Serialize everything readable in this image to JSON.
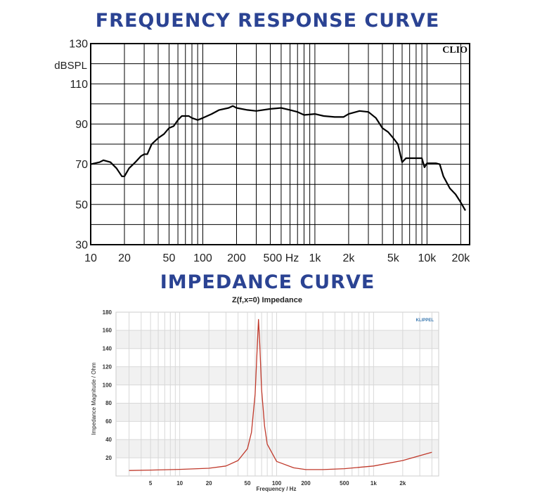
{
  "colors": {
    "title": "#2b4393",
    "fr_curve": "#000000",
    "imp_curve": "#c0392b",
    "band": "#f1f1f1"
  },
  "titles": {
    "frequency_response": "FREQUENCY RESPONSE CURVE",
    "impedance": "IMPEDANCE CURVE"
  },
  "chart_data": [
    {
      "type": "line",
      "title": "",
      "xlabel": "",
      "ylabel": "dBSPL",
      "xscale": "log",
      "xlim": [
        10,
        24000
      ],
      "ylim": [
        30,
        130
      ],
      "grid": true,
      "watermark": "CLIO",
      "yticks": [
        "130",
        "110",
        "90",
        "70",
        "50",
        "30"
      ],
      "ytick_values": [
        130,
        110,
        90,
        70,
        50,
        30
      ],
      "xticks": [
        "10",
        "20",
        "50",
        "100",
        "200",
        "500 Hz",
        "1k",
        "2k",
        "5k",
        "10k",
        "20k"
      ],
      "xtick_values": [
        10,
        20,
        50,
        100,
        200,
        500,
        1000,
        2000,
        5000,
        10000,
        20000
      ],
      "x": [
        10,
        12,
        13,
        15,
        17,
        19,
        20,
        22,
        25,
        28,
        30,
        32,
        35,
        40,
        45,
        50,
        55,
        60,
        65,
        75,
        80,
        90,
        100,
        120,
        140,
        170,
        185,
        200,
        250,
        300,
        400,
        500,
        600,
        700,
        800,
        1000,
        1200,
        1500,
        1800,
        2000,
        2500,
        3000,
        3500,
        4000,
        4500,
        5000,
        5500,
        6000,
        6500,
        8000,
        9000,
        9500,
        10000,
        12000,
        13000,
        14000,
        16000,
        18000,
        20000,
        22000
      ],
      "y": [
        70,
        71,
        72,
        71,
        68,
        64,
        64,
        68,
        71,
        74,
        75,
        75,
        80,
        83,
        85,
        88,
        89,
        92,
        94,
        94,
        93,
        92,
        93,
        95,
        97,
        98,
        99,
        98,
        97,
        96.5,
        97.5,
        98,
        97,
        96,
        94.5,
        95,
        94,
        93.5,
        93.5,
        95,
        96.5,
        96,
        93,
        88,
        86,
        83,
        80,
        71,
        73,
        73,
        73,
        68.5,
        70.5,
        70.5,
        70,
        64,
        58,
        55,
        51,
        47
      ]
    },
    {
      "type": "line",
      "title": "Z(f,x=0) Impedance",
      "xlabel": "Frequency / Hz",
      "ylabel": "Impedance Magnitude / Ohm",
      "xscale": "log",
      "xlim": [
        2.2,
        4700
      ],
      "ylim": [
        0,
        180
      ],
      "grid": true,
      "watermark": "KLIPPEL",
      "yticks": [
        "180",
        "160",
        "140",
        "120",
        "100",
        "80",
        "60",
        "40",
        "20"
      ],
      "ytick_values": [
        180,
        160,
        140,
        120,
        100,
        80,
        60,
        40,
        20
      ],
      "xticks": [
        "5",
        "10",
        "20",
        "50",
        "100",
        "200",
        "500",
        "1k",
        "2k"
      ],
      "xtick_values": [
        5,
        10,
        20,
        50,
        100,
        200,
        500,
        1000,
        2000
      ],
      "x": [
        3,
        5,
        10,
        20,
        30,
        40,
        50,
        55,
        60,
        63,
        65,
        67,
        70,
        75,
        80,
        100,
        150,
        200,
        300,
        500,
        1000,
        2000,
        4000
      ],
      "y": [
        6,
        6.5,
        7.3,
        8.5,
        11,
        17,
        30,
        48,
        90,
        140,
        172,
        145,
        95,
        55,
        35,
        16,
        9,
        7,
        7,
        8,
        11,
        17,
        26
      ]
    }
  ]
}
